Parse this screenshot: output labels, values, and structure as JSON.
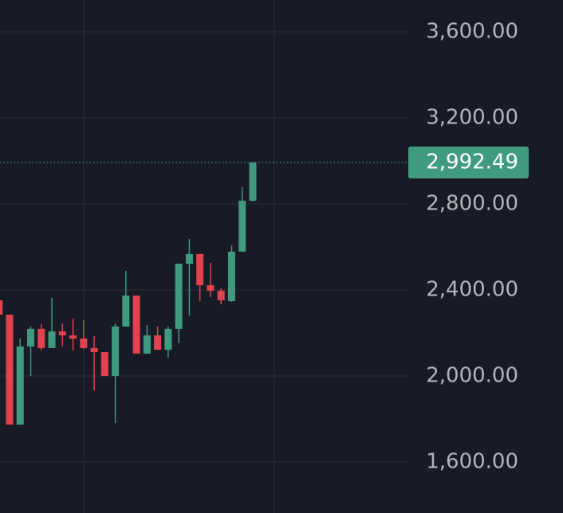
{
  "chart_data": {
    "type": "candlestick",
    "ylim": [
      1363,
      3748
    ],
    "yticks": [
      {
        "value": 1600,
        "label": "1,600.00"
      },
      {
        "value": 2000,
        "label": "2,000.00"
      },
      {
        "value": 2400,
        "label": "2,400.00"
      },
      {
        "value": 2800,
        "label": "2,800.00"
      },
      {
        "value": 3200,
        "label": "3,200.00"
      },
      {
        "value": 3600,
        "label": "3,600.00"
      }
    ],
    "grid": true,
    "up_color": "#3f9a80",
    "down_color": "#e0434f",
    "series": [
      {
        "open": [
          2352,
          2285,
          1774,
          2137,
          2219,
          2130,
          2207,
          2189,
          2174,
          2130,
          2111,
          2000,
          2230,
          2374,
          2104,
          2189,
          2122,
          2219,
          2522,
          2567,
          2422,
          2396,
          2348,
          2578,
          2815
        ],
        "high": [
          2352,
          2285,
          2174,
          2230,
          2241,
          2363,
          2244,
          2267,
          2259,
          2185,
          2111,
          2244,
          2489,
          2374,
          2237,
          2230,
          2230,
          2522,
          2637,
          2567,
          2526,
          2407,
          2607,
          2878,
          2992.49
        ],
        "low": [
          2285,
          1774,
          1774,
          2000,
          2119,
          2130,
          2137,
          2119,
          2126,
          1933,
          2000,
          1781,
          2230,
          2104,
          2104,
          2122,
          2085,
          2152,
          2281,
          2348,
          2367,
          2333,
          2344,
          2578,
          2811
        ],
        "close": [
          2285,
          1774,
          2137,
          2219,
          2130,
          2207,
          2189,
          2174,
          2130,
          2111,
          2000,
          2230,
          2374,
          2104,
          2189,
          2122,
          2219,
          2522,
          2567,
          2422,
          2396,
          2352,
          2578,
          2815,
          2992.49
        ]
      }
    ],
    "last_price": {
      "value": 2992.49,
      "label": "2,992.49"
    }
  }
}
